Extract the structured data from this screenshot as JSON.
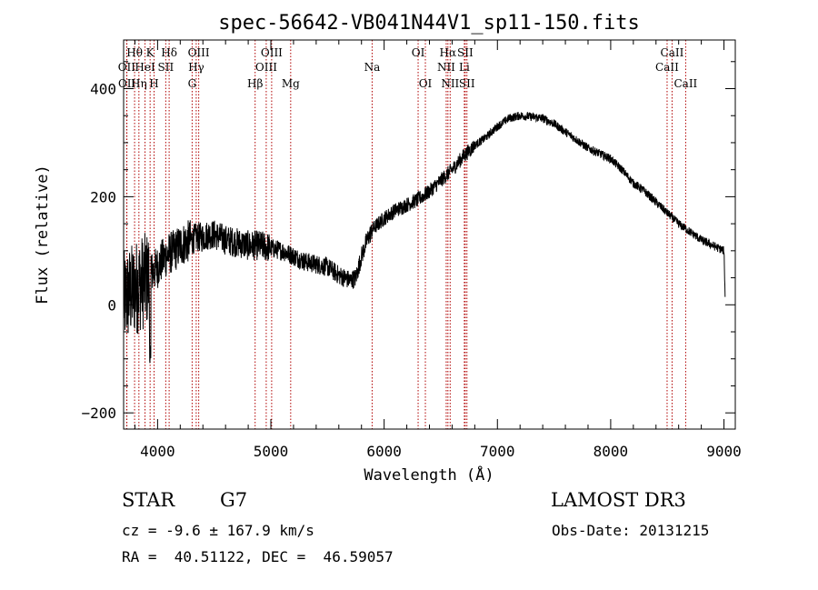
{
  "chart_data": {
    "type": "line",
    "title": "spec-56642-VB041N44V1_sp11-150.fits",
    "xlabel": "Wavelength (Å)",
    "ylabel": "Flux (relative)",
    "xlim": [
      3700,
      9100
    ],
    "ylim": [
      -230,
      490
    ],
    "xticks": [
      4000,
      5000,
      6000,
      7000,
      8000,
      9000
    ],
    "yticks": [
      -200,
      0,
      200,
      400
    ],
    "x_minor_step": 200,
    "y_minor_step": 50,
    "grid": false,
    "series": [
      {
        "name": "spectrum",
        "x": [
          3700,
          3750,
          3800,
          3850,
          3900,
          3950,
          4000,
          4050,
          4100,
          4150,
          4200,
          4250,
          4300,
          4350,
          4400,
          4450,
          4500,
          4600,
          4700,
          4800,
          4900,
          5000,
          5100,
          5200,
          5300,
          5400,
          5500,
          5600,
          5700,
          5750,
          5800,
          5850,
          5900,
          5950,
          6000,
          6100,
          6200,
          6300,
          6400,
          6500,
          6600,
          6700,
          6800,
          6900,
          7000,
          7100,
          7200,
          7300,
          7400,
          7500,
          7600,
          7700,
          7800,
          7900,
          8000,
          8100,
          8200,
          8300,
          8400,
          8500,
          8600,
          8700,
          8800,
          8900,
          9000,
          9010
        ],
        "y": [
          10,
          20,
          30,
          40,
          45,
          60,
          70,
          85,
          95,
          100,
          110,
          115,
          120,
          125,
          125,
          130,
          130,
          120,
          115,
          110,
          110,
          105,
          100,
          90,
          80,
          75,
          70,
          55,
          45,
          50,
          90,
          120,
          140,
          150,
          160,
          175,
          185,
          195,
          210,
          230,
          250,
          275,
          295,
          310,
          330,
          345,
          350,
          348,
          345,
          335,
          320,
          305,
          290,
          280,
          270,
          250,
          225,
          210,
          190,
          170,
          150,
          135,
          120,
          110,
          100,
          20
        ]
      }
    ],
    "lines": [
      {
        "label": "Hθ",
        "x": 3797,
        "row": 0
      },
      {
        "label": "OII",
        "x": 3727,
        "row": 1
      },
      {
        "label": "OII",
        "x": 3729,
        "row": 2
      },
      {
        "label": "Hη",
        "x": 3835,
        "row": 2
      },
      {
        "label": "HeI",
        "x": 3889,
        "row": 1
      },
      {
        "label": "K",
        "x": 3934,
        "row": 0
      },
      {
        "label": "H",
        "x": 3969,
        "row": 2
      },
      {
        "label": "SII",
        "x": 4072,
        "row": 1
      },
      {
        "label": "Hδ",
        "x": 4102,
        "row": 0
      },
      {
        "label": "G",
        "x": 4305,
        "row": 2
      },
      {
        "label": "OIII",
        "x": 4363,
        "row": 0
      },
      {
        "label": "Hγ",
        "x": 4341,
        "row": 1
      },
      {
        "label": "Hβ",
        "x": 4861,
        "row": 2
      },
      {
        "label": "OIII",
        "x": 4959,
        "row": 1
      },
      {
        "label": "OIII",
        "x": 5007,
        "row": 0
      },
      {
        "label": "Mg",
        "x": 5175,
        "row": 2
      },
      {
        "label": "Na",
        "x": 5894,
        "row": 1
      },
      {
        "label": "OI",
        "x": 6300,
        "row": 0
      },
      {
        "label": "OI",
        "x": 6364,
        "row": 2
      },
      {
        "label": "NII",
        "x": 6548,
        "row": 1
      },
      {
        "label": "Hα",
        "x": 6563,
        "row": 0
      },
      {
        "label": "NII",
        "x": 6583,
        "row": 2
      },
      {
        "label": "SII",
        "x": 6716,
        "row": 0
      },
      {
        "label": "Li",
        "x": 6708,
        "row": 1
      },
      {
        "label": "SII",
        "x": 6731,
        "row": 2
      },
      {
        "label": "CaII",
        "x": 8498,
        "row": 1
      },
      {
        "label": "CaII",
        "x": 8542,
        "row": 0
      },
      {
        "label": "CaII",
        "x": 8662,
        "row": 2
      }
    ]
  },
  "info": {
    "object_class": "STAR",
    "subclass": "G7",
    "redshift": "cz = -9.6 ± 167.9 km/s",
    "coords": "RA =  40.51122, DEC =  46.59057",
    "survey": "LAMOST DR3",
    "obs_date": "Obs-Date: 20131215"
  },
  "colors": {
    "line_marker": "#b00000",
    "spectrum": "#000000",
    "background": "#ffffff"
  }
}
